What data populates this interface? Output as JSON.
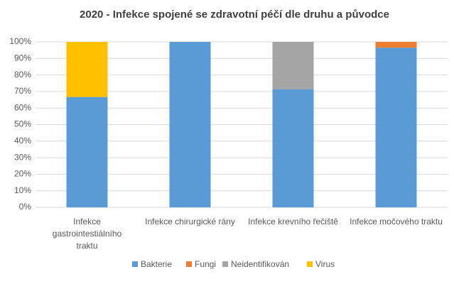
{
  "chart_data": {
    "type": "stacked_bar",
    "title": "2020 - Infekce spojené se zdravotní péčí dle druhu a původce",
    "categories": [
      "Infekce gastrointestiálního traktu",
      "Infekce chirurgické rány",
      "Infekce krevního řečiště",
      "Infekce močového traktu"
    ],
    "series": [
      {
        "name": "Bakterie",
        "color": "#5b9bd5",
        "values": [
          66.7,
          100,
          71.4,
          96.5
        ]
      },
      {
        "name": "Fungi",
        "color": "#ed7d31",
        "values": [
          0,
          0,
          0,
          3.5
        ]
      },
      {
        "name": "Neidentifikován",
        "color": "#a5a5a5",
        "values": [
          0,
          0,
          28.6,
          0
        ]
      },
      {
        "name": "Virus",
        "color": "#ffc000",
        "values": [
          33.3,
          0,
          0,
          0
        ]
      }
    ],
    "ylim": [
      0,
      100
    ],
    "yticks": [
      {
        "value": 0,
        "label": "0%"
      },
      {
        "value": 10,
        "label": "10%"
      },
      {
        "value": 20,
        "label": "20%"
      },
      {
        "value": 30,
        "label": "30%"
      },
      {
        "value": 40,
        "label": "40%"
      },
      {
        "value": 50,
        "label": "50%"
      },
      {
        "value": 60,
        "label": "60%"
      },
      {
        "value": 70,
        "label": "70%"
      },
      {
        "value": 80,
        "label": "80%"
      },
      {
        "value": 90,
        "label": "90%"
      },
      {
        "value": 100,
        "label": "100%"
      }
    ],
    "grid": true,
    "legend": "bottom"
  }
}
